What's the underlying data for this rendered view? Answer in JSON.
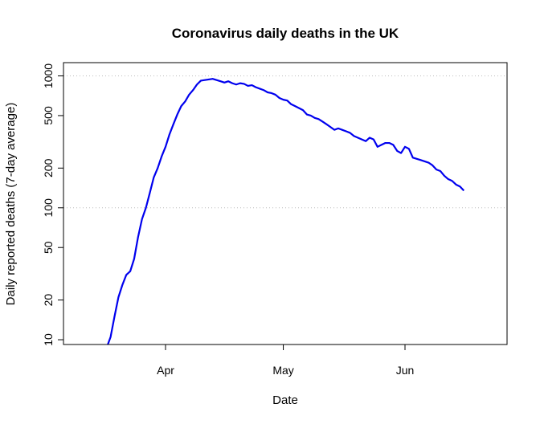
{
  "chart_data": {
    "type": "line",
    "title": "Coronavirus daily deaths in the UK",
    "xlabel": "Date",
    "ylabel": "Daily reported deaths (7-day average)",
    "y_scale": "log",
    "ylim": [
      9.2,
      1260
    ],
    "xlim": [
      "2020-03-06",
      "2020-06-27"
    ],
    "y_ticks": [
      {
        "value": 10,
        "label": "10"
      },
      {
        "value": 20,
        "label": "20"
      },
      {
        "value": 50,
        "label": "50"
      },
      {
        "value": 100,
        "label": "100"
      },
      {
        "value": 200,
        "label": "200"
      },
      {
        "value": 500,
        "label": "500"
      },
      {
        "value": 1000,
        "label": "1000"
      }
    ],
    "x_ticks": [
      {
        "value": "2020-04-01",
        "label": "Apr"
      },
      {
        "value": "2020-05-01",
        "label": "May"
      },
      {
        "value": "2020-06-01",
        "label": "Jun"
      }
    ],
    "hlines": [
      100,
      1000
    ],
    "series_color": "#0000ee",
    "grid_color": "#bbbbbb",
    "series": [
      {
        "x": [
          "2020-03-17",
          "2020-03-18",
          "2020-03-19",
          "2020-03-20",
          "2020-03-21",
          "2020-03-22",
          "2020-03-23",
          "2020-03-24",
          "2020-03-25",
          "2020-03-26",
          "2020-03-27",
          "2020-03-28",
          "2020-03-29",
          "2020-03-30",
          "2020-03-31",
          "2020-04-01",
          "2020-04-02",
          "2020-04-03",
          "2020-04-04",
          "2020-04-05",
          "2020-04-06",
          "2020-04-07",
          "2020-04-08",
          "2020-04-09",
          "2020-04-10",
          "2020-04-11",
          "2020-04-12",
          "2020-04-13",
          "2020-04-14",
          "2020-04-15",
          "2020-04-16",
          "2020-04-17",
          "2020-04-18",
          "2020-04-19",
          "2020-04-20",
          "2020-04-21",
          "2020-04-22",
          "2020-04-23",
          "2020-04-24",
          "2020-04-25",
          "2020-04-26",
          "2020-04-27",
          "2020-04-28",
          "2020-04-29",
          "2020-04-30",
          "2020-05-01",
          "2020-05-02",
          "2020-05-03",
          "2020-05-04",
          "2020-05-05",
          "2020-05-06",
          "2020-05-07",
          "2020-05-08",
          "2020-05-09",
          "2020-05-10",
          "2020-05-11",
          "2020-05-12",
          "2020-05-13",
          "2020-05-14",
          "2020-05-15",
          "2020-05-16",
          "2020-05-17",
          "2020-05-18",
          "2020-05-19",
          "2020-05-20",
          "2020-05-21",
          "2020-05-22",
          "2020-05-23",
          "2020-05-24",
          "2020-05-25",
          "2020-05-26",
          "2020-05-27",
          "2020-05-28",
          "2020-05-29",
          "2020-05-30",
          "2020-05-31",
          "2020-06-01",
          "2020-06-02",
          "2020-06-03",
          "2020-06-04",
          "2020-06-05",
          "2020-06-06",
          "2020-06-07",
          "2020-06-08",
          "2020-06-09",
          "2020-06-10",
          "2020-06-11",
          "2020-06-12",
          "2020-06-13",
          "2020-06-14",
          "2020-06-15",
          "2020-06-16"
        ],
        "values": [
          8.7,
          10.5,
          15,
          21,
          26,
          31,
          33,
          41,
          60,
          82,
          100,
          130,
          170,
          200,
          245,
          290,
          360,
          430,
          510,
          590,
          640,
          720,
          780,
          860,
          920,
          930,
          940,
          950,
          930,
          910,
          890,
          910,
          880,
          860,
          880,
          870,
          840,
          850,
          820,
          800,
          780,
          750,
          740,
          720,
          680,
          660,
          650,
          610,
          590,
          570,
          550,
          510,
          500,
          480,
          470,
          450,
          430,
          410,
          390,
          400,
          390,
          380,
          370,
          350,
          340,
          330,
          320,
          340,
          330,
          290,
          300,
          310,
          310,
          300,
          270,
          260,
          290,
          280,
          240,
          235,
          230,
          225,
          220,
          210,
          195,
          190,
          175,
          165,
          160,
          150,
          145,
          135
        ]
      }
    ]
  }
}
